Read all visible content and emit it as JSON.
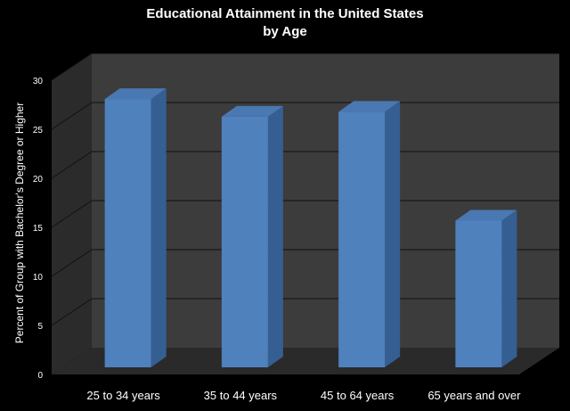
{
  "chart_data": {
    "type": "bar",
    "title_lines": [
      "Educational Attainment in the United States",
      "by Age"
    ],
    "xlabel": "",
    "ylabel": "Percent of Group with Bachelor's Degree or Higher",
    "ylim": [
      0,
      30
    ],
    "yticks": [
      "0",
      "5",
      "10",
      "15",
      "20",
      "25",
      "30"
    ],
    "categories": [
      "25 to 34 years",
      "35 to 44 years",
      "45 to 64 years",
      "65 years and over"
    ],
    "values": [
      27.9,
      26.1,
      26.6,
      15.5
    ],
    "grid": true,
    "style": "3d",
    "colors": {
      "background": "#000000",
      "back_wall": "#3c3c3c",
      "side_wall": "#2b2b2b",
      "floor": "#2a2a2a",
      "grid": "#111111",
      "bar_front": "#4f81bd",
      "bar_top": "#4a78b2",
      "bar_side": "#355f93"
    }
  }
}
